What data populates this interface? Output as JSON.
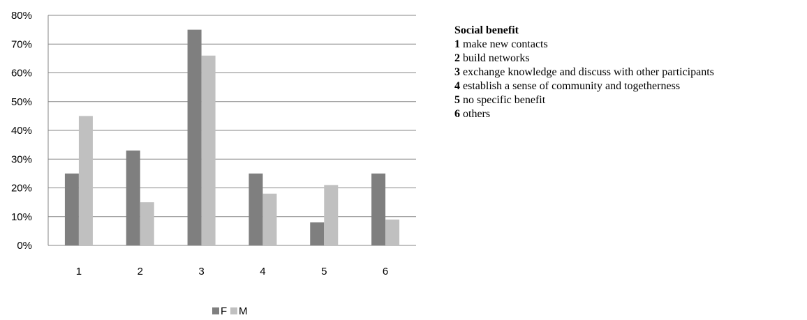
{
  "chart_data": {
    "type": "bar",
    "categories": [
      "1",
      "2",
      "3",
      "4",
      "5",
      "6"
    ],
    "series": [
      {
        "name": "F",
        "values": [
          25,
          33,
          75,
          25,
          8,
          25
        ],
        "color": "#7f7f7f"
      },
      {
        "name": "M",
        "values": [
          45,
          15,
          66,
          18,
          21,
          9
        ],
        "color": "#c0c0c0"
      }
    ],
    "ylim": [
      0,
      80
    ],
    "yticks": [
      "0%",
      "10%",
      "20%",
      "30%",
      "40%",
      "50%",
      "60%",
      "70%",
      "80%"
    ],
    "grid": true,
    "legend_position": "bottom",
    "gridline_color": "#868686"
  },
  "description": {
    "title": "Social benefit",
    "items": [
      {
        "num": "1",
        "text": "make new contacts"
      },
      {
        "num": "2",
        "text": "build networks"
      },
      {
        "num": "3",
        "text": "exchange knowledge and discuss with other participants"
      },
      {
        "num": "4",
        "text": "establish a sense of community and togetherness"
      },
      {
        "num": "5",
        "text": "no specific benefit"
      },
      {
        "num": "6",
        "text": "others"
      }
    ]
  }
}
